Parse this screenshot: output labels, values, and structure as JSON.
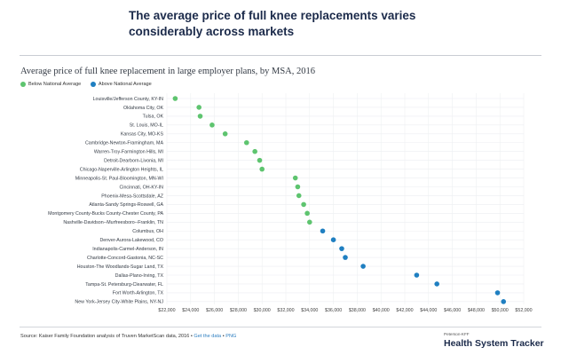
{
  "headline": "The average price of full knee replacements varies considerably across markets",
  "chart_data": {
    "type": "scatter",
    "title": "Average price of full knee replacement in large employer plans, by MSA, 2016",
    "legend": [
      {
        "name": "Below National Average",
        "color": "#5ec46f"
      },
      {
        "name": "Above National Average",
        "color": "#1f7fc1"
      }
    ],
    "xlim": [
      22000,
      52000
    ],
    "xticks": [
      22000,
      24000,
      26000,
      28000,
      30000,
      32000,
      34000,
      36000,
      38000,
      40000,
      42000,
      44000,
      46000,
      48000,
      50000,
      52000
    ],
    "xtick_labels": [
      "$22,000",
      "$24,000",
      "$26,000",
      "$28,000",
      "$30,000",
      "$32,000",
      "$34,000",
      "$36,000",
      "$38,000",
      "$40,000",
      "$42,000",
      "$44,000",
      "$46,000",
      "$48,000",
      "$50,000",
      "$52,000"
    ],
    "points": [
      {
        "label": "Louisville/Jefferson County, KY-IN",
        "value": 22700,
        "group": "below"
      },
      {
        "label": "Oklahoma City, OK",
        "value": 24700,
        "group": "below"
      },
      {
        "label": "Tulsa, OK",
        "value": 24800,
        "group": "below"
      },
      {
        "label": "St. Louis, MO-IL",
        "value": 25800,
        "group": "below"
      },
      {
        "label": "Kansas City, MO-KS",
        "value": 26900,
        "group": "below"
      },
      {
        "label": "Cambridge-Newton-Framingham, MA",
        "value": 28700,
        "group": "below"
      },
      {
        "label": "Warren-Troy-Farmington Hills, MI",
        "value": 29400,
        "group": "below"
      },
      {
        "label": "Detroit-Dearborn-Livonia, MI",
        "value": 29800,
        "group": "below"
      },
      {
        "label": "Chicago-Naperville-Arlington Heights, IL",
        "value": 30000,
        "group": "below"
      },
      {
        "label": "Minneapolis-St. Paul-Bloomington, MN-WI",
        "value": 32800,
        "group": "below"
      },
      {
        "label": "Cincinnati, OH-KY-IN",
        "value": 33000,
        "group": "below"
      },
      {
        "label": "Phoenix-Mesa-Scottsdale, AZ",
        "value": 33100,
        "group": "below"
      },
      {
        "label": "Atlanta-Sandy Springs-Roswell, GA",
        "value": 33500,
        "group": "below"
      },
      {
        "label": "Montgomery County-Bucks County-Chester County, PA",
        "value": 33800,
        "group": "below"
      },
      {
        "label": "Nashville-Davidson--Murfreesboro--Franklin, TN",
        "value": 34000,
        "group": "below"
      },
      {
        "label": "Columbus, OH",
        "value": 35100,
        "group": "above"
      },
      {
        "label": "Denver-Aurora-Lakewood, CO",
        "value": 36000,
        "group": "above"
      },
      {
        "label": "Indianapolis-Carmel-Anderson, IN",
        "value": 36700,
        "group": "above"
      },
      {
        "label": "Charlotte-Concord-Gastonia, NC-SC",
        "value": 37000,
        "group": "above"
      },
      {
        "label": "Houston-The Woodlands-Sugar Land, TX",
        "value": 38500,
        "group": "above"
      },
      {
        "label": "Dallas-Plano-Irving, TX",
        "value": 43000,
        "group": "above"
      },
      {
        "label": "Tampa-St. Petersburg-Clearwater, FL",
        "value": 44700,
        "group": "above"
      },
      {
        "label": "Fort Worth-Arlington, TX",
        "value": 49800,
        "group": "above"
      },
      {
        "label": "New York-Jersey City-White Plains, NY-NJ",
        "value": 50300,
        "group": "above"
      }
    ]
  },
  "footer": {
    "source_text": "Source: Kaiser Family Foundation analysis of Truven MarketScan data, 2016 • ",
    "get_data": "Get the data",
    "separator": " • ",
    "png": "PNG",
    "brand_small": "Peterson-KFF",
    "brand": "Health System Tracker"
  }
}
